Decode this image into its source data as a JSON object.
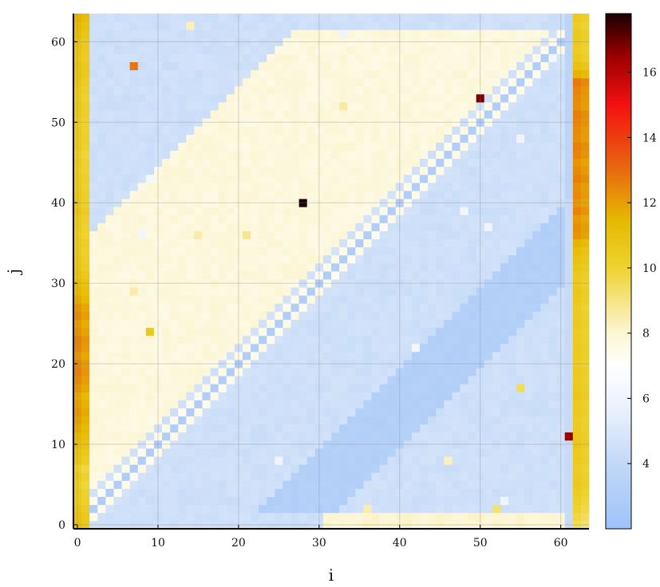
{
  "chart_data": {
    "type": "heatmap",
    "title": "",
    "xlabel": "i",
    "ylabel": "j",
    "xlim": [
      -0.5,
      63.5
    ],
    "ylim": [
      -0.5,
      63.5
    ],
    "x_ticks": [
      0,
      10,
      20,
      30,
      40,
      50,
      60
    ],
    "y_ticks": [
      0,
      10,
      20,
      30,
      40,
      50,
      60
    ],
    "grid": true,
    "colorbar": {
      "range": [
        2,
        17.8
      ],
      "ticks": [
        4,
        6,
        8,
        10,
        12,
        14,
        16
      ],
      "stops": [
        {
          "v": 2.0,
          "c": "#9dc3fa"
        },
        {
          "v": 4.0,
          "c": "#c2d8f7"
        },
        {
          "v": 5.5,
          "c": "#e6effc"
        },
        {
          "v": 7.0,
          "c": "#ffffff"
        },
        {
          "v": 8.0,
          "c": "#fcf6d4"
        },
        {
          "v": 10.0,
          "c": "#eed330"
        },
        {
          "v": 11.5,
          "c": "#e6b800"
        },
        {
          "v": 13.0,
          "c": "#e86a10"
        },
        {
          "v": 15.0,
          "c": "#f41010"
        },
        {
          "v": 16.5,
          "c": "#9b0000"
        },
        {
          "v": 17.8,
          "c": "#1a0000"
        }
      ]
    },
    "regions": {
      "background_value": 4.5,
      "upper_band_value": 7.8,
      "upper_band_i_minus_j": [
        -34,
        -2
      ],
      "lower_band_value": 3.2,
      "lower_band_i_minus_j": [
        21,
        30
      ],
      "lower_band_j_max": 40,
      "diagonal_dark_value": 3.0,
      "diagonal_light_value": 7.5,
      "column0_values": [
        11,
        11,
        10.8,
        10.5,
        10.5,
        10.3,
        10.5,
        10.2,
        10.8,
        11,
        11.3,
        11.5,
        11.8,
        12,
        12.2,
        12,
        11.8,
        12.2,
        12.4,
        12.6,
        12.5,
        12.2,
        12.5,
        12.6,
        12.3,
        12.1,
        12.4,
        12.2,
        11.8,
        11.5,
        11.3,
        11,
        10.8,
        10.7,
        10.5,
        10.6,
        10.4,
        10.5,
        10.6,
        10.8,
        10.6,
        10.7,
        10.5,
        10.6,
        10.4,
        10.5,
        10.3,
        10.5,
        10.6,
        10.5,
        10.4,
        10.6,
        10.7,
        10.5,
        10.6,
        10.8,
        10.9,
        11,
        10.8,
        10.9,
        11,
        11.2,
        11.4,
        11.6
      ],
      "column62_values": [
        9.5,
        9.8,
        10,
        10.2,
        10.4,
        10.6,
        10.5,
        10.4,
        10.6,
        10.5,
        10.7,
        10.6,
        10.5,
        10.4,
        10.6,
        10.5,
        10.7,
        10.6,
        10.5,
        10.6,
        10.4,
        10.5,
        10.6,
        10.5,
        10.4,
        10.6,
        10.5,
        10.4,
        10.6,
        10.7,
        10.5,
        10.6,
        10.8,
        11,
        11.2,
        11.6,
        12.2,
        12.3,
        12.1,
        12.5,
        12.2,
        12.4,
        12.3,
        12.6,
        12.4,
        12.2,
        12.5,
        12.6,
        12.3,
        12.4,
        12.5,
        12.6,
        12.3,
        12.4,
        12.5,
        12.7,
        11.6,
        11,
        10.6,
        10.4,
        10.5,
        10.6,
        10.3,
        10.5
      ]
    },
    "highlights": [
      {
        "i": 28,
        "j": 40,
        "value": 17.8
      },
      {
        "i": 50,
        "j": 53,
        "value": 16.8
      },
      {
        "i": 61,
        "j": 11,
        "value": 16.5
      },
      {
        "i": 7,
        "j": 57,
        "value": 12.8
      },
      {
        "i": 9,
        "j": 24,
        "value": 10.5
      },
      {
        "i": 55,
        "j": 17,
        "value": 9.5
      },
      {
        "i": 52,
        "j": 2,
        "value": 9.2
      },
      {
        "i": 33,
        "j": 52,
        "value": 8.6
      },
      {
        "i": 21,
        "j": 36,
        "value": 8.8
      },
      {
        "i": 15,
        "j": 36,
        "value": 8.5
      },
      {
        "i": 7,
        "j": 29,
        "value": 8.5
      },
      {
        "i": 46,
        "j": 8,
        "value": 8.3
      },
      {
        "i": 36,
        "j": 2,
        "value": 8.5
      },
      {
        "i": 14,
        "j": 62,
        "value": 8.3
      },
      {
        "i": 9,
        "j": 43,
        "value": 6.3
      },
      {
        "i": 8,
        "j": 36,
        "value": 6.2
      },
      {
        "i": 55,
        "j": 48,
        "value": 6.1
      },
      {
        "i": 51,
        "j": 37,
        "value": 6.1
      },
      {
        "i": 48,
        "j": 39,
        "value": 6.2
      },
      {
        "i": 25,
        "j": 8,
        "value": 6.1
      },
      {
        "i": 42,
        "j": 22,
        "value": 6.2
      },
      {
        "i": 33,
        "j": 61,
        "value": 6.1
      },
      {
        "i": 59,
        "j": 58,
        "value": 6.2
      },
      {
        "i": 53,
        "j": 3,
        "value": 6.1
      }
    ]
  }
}
